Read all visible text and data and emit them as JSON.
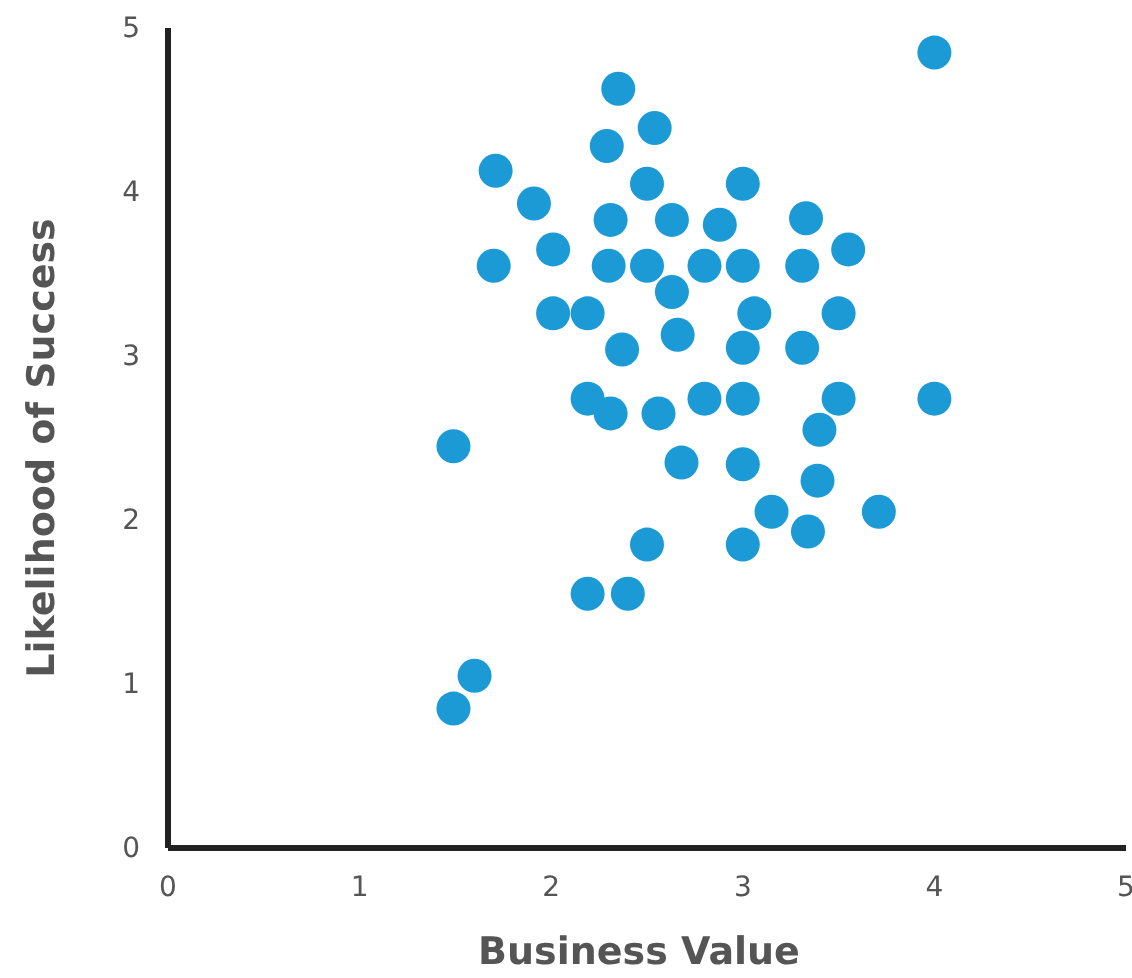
{
  "chart_data": {
    "type": "scatter",
    "xlabel": "Business Value",
    "ylabel": "Likelihood of Success",
    "xlim": [
      0,
      5
    ],
    "ylim": [
      0,
      5
    ],
    "xticks": [
      0,
      1,
      2,
      3,
      4,
      5
    ],
    "yticks": [
      0,
      1,
      2,
      3,
      4,
      5
    ],
    "grid": false,
    "marker": "circle",
    "series": [
      {
        "color": "#1b9ad6",
        "x": [
          4.0,
          2.35,
          2.54,
          2.29,
          1.71,
          1.91,
          2.5,
          3.0,
          2.31,
          2.63,
          2.88,
          3.33,
          2.01,
          1.7,
          2.3,
          2.5,
          2.8,
          3.0,
          3.31,
          3.55,
          2.63,
          2.01,
          2.19,
          3.06,
          3.5,
          2.66,
          2.37,
          3.0,
          3.31,
          2.19,
          2.31,
          2.56,
          2.8,
          3.0,
          3.5,
          4.0,
          3.4,
          1.49,
          2.68,
          3.0,
          3.39,
          3.15,
          3.71,
          3.34,
          2.5,
          3.0,
          2.19,
          2.4,
          1.6,
          1.49
        ],
        "values": [
          4.85,
          4.63,
          4.39,
          4.28,
          4.13,
          3.93,
          4.05,
          4.05,
          3.83,
          3.83,
          3.8,
          3.84,
          3.65,
          3.55,
          3.55,
          3.55,
          3.55,
          3.55,
          3.55,
          3.65,
          3.39,
          3.26,
          3.26,
          3.26,
          3.26,
          3.13,
          3.04,
          3.05,
          3.05,
          2.74,
          2.65,
          2.65,
          2.74,
          2.74,
          2.74,
          2.74,
          2.55,
          2.45,
          2.35,
          2.34,
          2.24,
          2.05,
          2.05,
          1.93,
          1.85,
          1.85,
          1.55,
          1.55,
          1.05,
          0.85
        ]
      }
    ]
  }
}
